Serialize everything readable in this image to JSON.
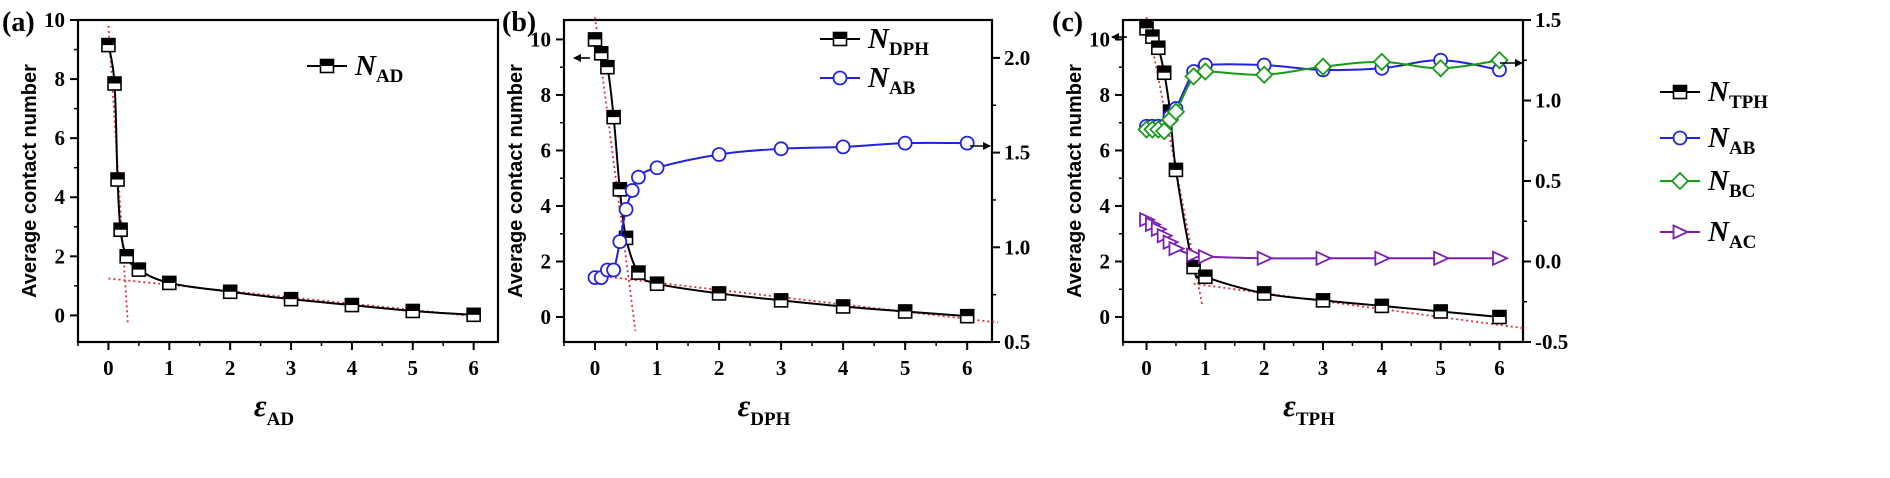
{
  "colors": {
    "black": "#000000",
    "blue": "#2222dd",
    "green": "#1a9a1a",
    "purple": "#7a1fb0",
    "fit": "#e03040"
  },
  "chart_data": [
    {
      "type": "line",
      "panel_label": "(a)",
      "xlabel_symbol": "ε",
      "xlabel_sub": "AD",
      "ylabel": "Average contact number",
      "xlim": [
        -0.5,
        6.4
      ],
      "ylim": [
        -0.9,
        10
      ],
      "xticks": [
        "0",
        "1",
        "2",
        "3",
        "4",
        "5",
        "6"
      ],
      "yticks": [
        "0",
        "2",
        "4",
        "6",
        "8",
        "10"
      ],
      "series": [
        {
          "name": "N",
          "name_sub": "AD",
          "axis": "left",
          "marker": "square",
          "x": [
            0,
            0.1,
            0.15,
            0.2,
            0.3,
            0.5,
            1,
            2,
            3,
            4,
            5,
            6
          ],
          "y": [
            9.15,
            7.85,
            4.6,
            2.9,
            2.0,
            1.55,
            1.1,
            0.8,
            0.55,
            0.35,
            0.15,
            0.02
          ]
        }
      ],
      "guides": [
        {
          "x": [
            0,
            0.32
          ],
          "y": [
            9.8,
            -0.3
          ]
        },
        {
          "x": [
            0.0,
            6.1
          ],
          "y": [
            1.25,
            -0.05
          ]
        }
      ],
      "legend_position": "top-right"
    },
    {
      "type": "line",
      "panel_label": "(b)",
      "xlabel_symbol": "ε",
      "xlabel_sub": "DPH",
      "ylabel": "Average contact number",
      "xlim": [
        -0.5,
        6.4
      ],
      "ylim": [
        -0.9,
        10.7
      ],
      "y2lim": [
        0.5,
        2.2
      ],
      "xticks": [
        "0",
        "1",
        "2",
        "3",
        "4",
        "5",
        "6"
      ],
      "yticks": [
        "0",
        "2",
        "4",
        "6",
        "8",
        "10"
      ],
      "y2ticks": [
        "0.5",
        "1.0",
        "1.5",
        "2.0"
      ],
      "series": [
        {
          "name": "N",
          "name_sub": "DPH",
          "axis": "left",
          "marker": "square",
          "x": [
            0,
            0.1,
            0.2,
            0.3,
            0.4,
            0.5,
            0.7,
            1,
            2,
            3,
            4,
            5,
            6
          ],
          "y": [
            10.0,
            9.5,
            9.0,
            7.2,
            4.6,
            2.85,
            1.6,
            1.2,
            0.85,
            0.6,
            0.38,
            0.2,
            0.03
          ]
        },
        {
          "name": "N",
          "name_sub": "AB",
          "axis": "right",
          "marker": "circle",
          "x": [
            0,
            0.1,
            0.2,
            0.3,
            0.4,
            0.5,
            0.6,
            0.7,
            1,
            2,
            3,
            4,
            5,
            6
          ],
          "y": [
            0.84,
            0.84,
            0.88,
            0.88,
            1.03,
            1.2,
            1.3,
            1.37,
            1.42,
            1.49,
            1.52,
            1.53,
            1.55,
            1.55
          ]
        }
      ],
      "guides": [
        {
          "x": [
            0,
            0.65
          ],
          "y": [
            10.8,
            -0.5
          ]
        },
        {
          "x": [
            0.0,
            6.5
          ],
          "y": [
            1.5,
            -0.2
          ]
        }
      ],
      "legend_position": "top-right"
    },
    {
      "type": "line",
      "panel_label": "(c)",
      "xlabel_symbol": "ε",
      "xlabel_sub": "TPH",
      "ylabel": "Average contact number",
      "xlim": [
        -0.4,
        6.4
      ],
      "ylim": [
        -0.9,
        10.7
      ],
      "y2lim": [
        -0.5,
        1.5
      ],
      "xticks": [
        "0",
        "1",
        "2",
        "3",
        "4",
        "5",
        "6"
      ],
      "yticks": [
        "0",
        "2",
        "4",
        "6",
        "8",
        "10"
      ],
      "y2ticks": [
        "-0.5",
        "0.0",
        "0.5",
        "1.0",
        "1.5"
      ],
      "series": [
        {
          "name": "N",
          "name_sub": "TPH",
          "axis": "left",
          "marker": "square",
          "x": [
            0,
            0.1,
            0.2,
            0.3,
            0.4,
            0.5,
            0.8,
            1,
            2,
            3,
            4,
            5,
            6
          ],
          "y": [
            10.4,
            10.1,
            9.7,
            8.8,
            7.4,
            5.3,
            1.8,
            1.45,
            0.85,
            0.6,
            0.4,
            0.2,
            0.0
          ]
        },
        {
          "name": "N",
          "name_sub": "AB",
          "axis": "right",
          "marker": "circle",
          "x": [
            0,
            0.1,
            0.2,
            0.3,
            0.4,
            0.5,
            0.8,
            1,
            2,
            3,
            4,
            5,
            6
          ],
          "y": [
            0.84,
            0.84,
            0.84,
            0.84,
            0.9,
            0.95,
            1.18,
            1.22,
            1.22,
            1.19,
            1.2,
            1.25,
            1.19
          ]
        },
        {
          "name": "N",
          "name_sub": "BC",
          "axis": "right",
          "marker": "diamond",
          "x": [
            0,
            0.1,
            0.2,
            0.3,
            0.4,
            0.5,
            0.8,
            1,
            2,
            3,
            4,
            5,
            6
          ],
          "y": [
            0.82,
            0.82,
            0.82,
            0.81,
            0.88,
            0.93,
            1.15,
            1.18,
            1.16,
            1.21,
            1.24,
            1.2,
            1.25
          ]
        },
        {
          "name": "N",
          "name_sub": "AC",
          "axis": "right",
          "marker": "triangle-right",
          "x": [
            0,
            0.1,
            0.2,
            0.3,
            0.4,
            0.5,
            0.8,
            1,
            2,
            3,
            4,
            5,
            6
          ],
          "y": [
            0.26,
            0.23,
            0.2,
            0.16,
            0.12,
            0.08,
            0.04,
            0.03,
            0.02,
            0.02,
            0.02,
            0.02,
            0.02
          ]
        }
      ],
      "guides": [
        {
          "x": [
            0,
            0.95
          ],
          "y": [
            10.8,
            0.4
          ]
        },
        {
          "x": [
            0.8,
            6.4
          ],
          "y": [
            1.2,
            -0.4
          ]
        }
      ],
      "legend_position": "right"
    }
  ]
}
